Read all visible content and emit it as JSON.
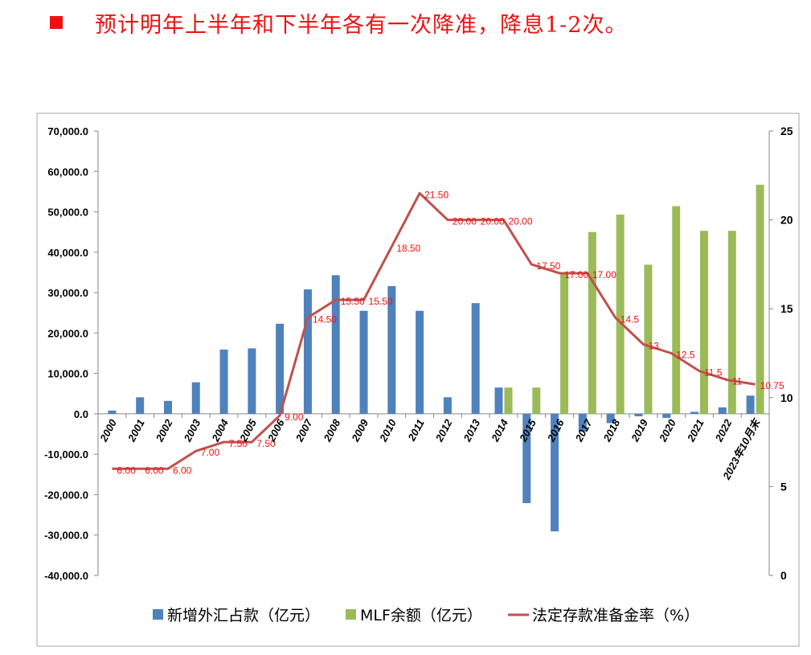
{
  "header": {
    "bullet": "■",
    "text": "预计明年上半年和下半年各有一次降准，降息1-2次。"
  },
  "colors": {
    "fx": "#4f81bd",
    "mlf": "#9bbb59",
    "rrr": "#c0504d",
    "label": "#ee1111",
    "headline": "#ee1111"
  },
  "chart_data": {
    "type": "bar",
    "categories": [
      "2000",
      "2001",
      "2002",
      "2003",
      "2004",
      "2005",
      "2006",
      "2007",
      "2008",
      "2009",
      "2010",
      "2011",
      "2012",
      "2013",
      "2014",
      "2015",
      "2016",
      "2017",
      "2018",
      "2019",
      "2020",
      "2021",
      "2022",
      "2023年10月末"
    ],
    "series": [
      {
        "name": "新增外汇占款（亿元）",
        "type": "bar",
        "axis": "left",
        "color": "#4f81bd",
        "values": [
          800,
          4100,
          3200,
          7800,
          15900,
          16200,
          22300,
          30800,
          34300,
          25500,
          31600,
          25500,
          4100,
          27400,
          6500,
          -22100,
          -29100,
          -4400,
          -2300,
          -600,
          -1000,
          500,
          1600,
          4500
        ]
      },
      {
        "name": "MLF余额（亿元）",
        "type": "bar",
        "axis": "left",
        "color": "#9bbb59",
        "values": [
          null,
          null,
          null,
          null,
          null,
          null,
          null,
          null,
          null,
          null,
          null,
          null,
          null,
          null,
          6500,
          6500,
          34500,
          45000,
          49300,
          36900,
          51400,
          45300,
          45300,
          56700
        ]
      },
      {
        "name": "法定存款准备金率（%）",
        "type": "line",
        "axis": "right",
        "color": "#c0504d",
        "values": [
          6.0,
          6.0,
          6.0,
          7.0,
          7.5,
          7.5,
          9.0,
          14.5,
          15.5,
          15.5,
          18.5,
          21.5,
          20.0,
          20.0,
          20.0,
          17.5,
          17.0,
          17.0,
          14.5,
          13.0,
          12.5,
          11.5,
          11.0,
          10.75
        ],
        "labels": [
          "6.00",
          "6.00",
          "6.00",
          "7.00",
          "7.50",
          "7.50",
          "9.00",
          "14.50",
          "15.50",
          "15.50",
          "18.50",
          "21.50",
          "20.00",
          "20.00",
          "20.00",
          "17.50",
          "17.00",
          "17.00",
          "14.5",
          "13",
          "12.5",
          "11.5",
          "11",
          "10.75"
        ]
      }
    ],
    "y_left": {
      "min": -40000,
      "max": 70000,
      "step": 10000,
      "tick_labels": [
        "-40,000.0",
        "-30,000.0",
        "-20,000.0",
        "-10,000.0",
        "0.0",
        "10,000.0",
        "20,000.0",
        "30,000.0",
        "40,000.0",
        "50,000.0",
        "60,000.0",
        "70,000.0"
      ]
    },
    "y_right": {
      "min": 0,
      "max": 25,
      "step": 5,
      "tick_labels": [
        "0",
        "5",
        "10",
        "15",
        "20",
        "25"
      ]
    },
    "legend_position": "bottom",
    "grid": false
  }
}
